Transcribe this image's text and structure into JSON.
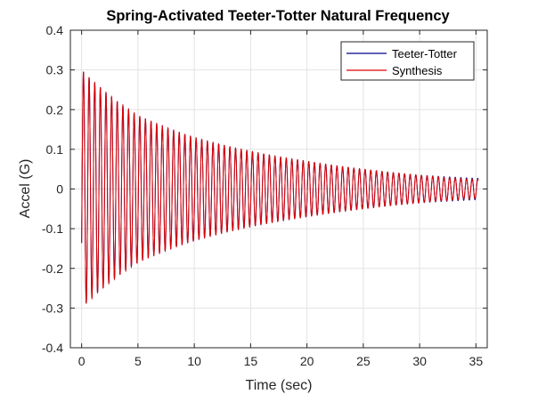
{
  "chart_data": {
    "type": "line",
    "title": "Spring-Activated Teeter-Totter Natural Frequency",
    "xlabel": "Time (sec)",
    "ylabel": "Accel (G)",
    "xlim": [
      -1,
      36
    ],
    "ylim": [
      -0.4,
      0.4
    ],
    "xticks": [
      0,
      5,
      10,
      15,
      20,
      25,
      30,
      35
    ],
    "yticks": [
      -0.4,
      -0.3,
      -0.2,
      -0.1,
      0,
      0.1,
      0.2,
      0.3,
      0.4
    ],
    "xtick_labels": [
      "0",
      "5",
      "10",
      "15",
      "20",
      "25",
      "30",
      "35"
    ],
    "ytick_labels": [
      "-0.4",
      "-0.3",
      "-0.2",
      "-0.1",
      "0",
      "0.1",
      "0.2",
      "0.3",
      "0.4"
    ],
    "grid": true,
    "legend_location": "top-right",
    "series": [
      {
        "name": "Teeter-Totter",
        "color": "#00008b",
        "signal": {
          "model": "decaying-sinusoid",
          "t_start": 0,
          "t_end": 35.2,
          "amplitude_envelope": [
            [
              0,
              0.3
            ],
            [
              5,
              0.185
            ],
            [
              10,
              0.13
            ],
            [
              15,
              0.095
            ],
            [
              20,
              0.07
            ],
            [
              25,
              0.05
            ],
            [
              30,
              0.035
            ],
            [
              35,
              0.027
            ]
          ],
          "frequency_hz": 2.0,
          "envelope_points": [
            [
              0.2,
              0.3
            ],
            [
              0.6,
              -0.295
            ],
            [
              5,
              0.185
            ],
            [
              10,
              0.13
            ],
            [
              15,
              0.095
            ],
            [
              20,
              0.07
            ],
            [
              25,
              0.05
            ],
            [
              30,
              0.035
            ],
            [
              35,
              0.027
            ]
          ]
        }
      },
      {
        "name": "Synthesis",
        "color": "#dd0000",
        "signal": {
          "model": "decaying-sinusoid",
          "t_start": 0,
          "t_end": 35.2,
          "amplitude_envelope": [
            [
              0,
              0.3
            ],
            [
              5,
              0.185
            ],
            [
              10,
              0.13
            ],
            [
              15,
              0.095
            ],
            [
              20,
              0.07
            ],
            [
              25,
              0.05
            ],
            [
              30,
              0.035
            ],
            [
              35,
              0.024
            ]
          ],
          "frequency_hz": 2.0,
          "envelope_points": [
            [
              0.2,
              0.3
            ],
            [
              0.6,
              -0.295
            ],
            [
              5,
              0.185
            ],
            [
              10,
              0.13
            ],
            [
              15,
              0.095
            ],
            [
              20,
              0.07
            ],
            [
              25,
              0.05
            ],
            [
              30,
              0.035
            ],
            [
              35,
              0.024
            ]
          ]
        }
      }
    ]
  }
}
